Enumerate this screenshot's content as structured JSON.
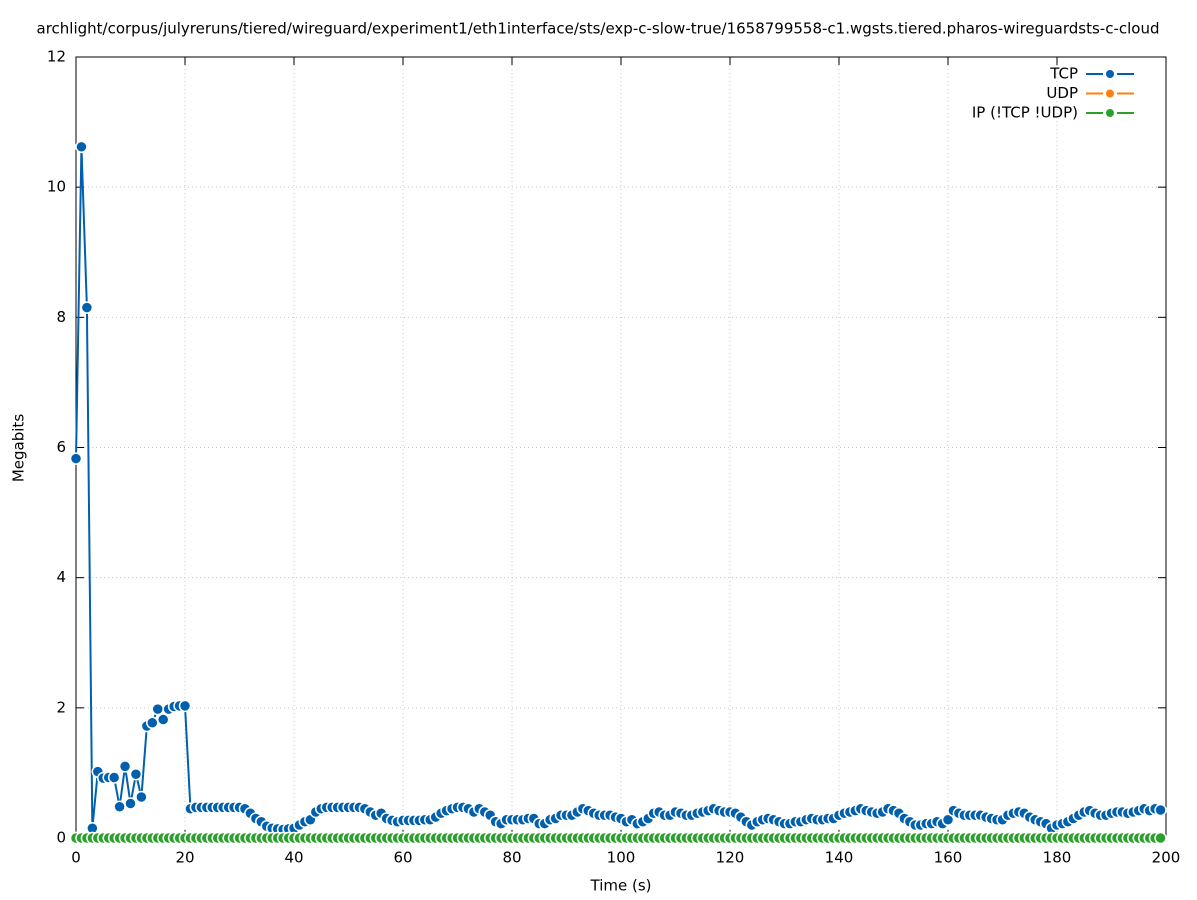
{
  "chart_data": {
    "type": "line",
    "title": "archlight/corpus/julyreruns/tiered/wireguard/experiment1/eth1interface/sts/exp-c-slow-true/1658799558-c1.wgsts.tiered.pharos-wireguardsts-c-cloud",
    "x_label": "Time (s)",
    "y_label": "Megabits",
    "x": [
      0,
      1,
      2,
      3,
      4,
      5,
      6,
      7,
      8,
      9,
      10,
      11,
      12,
      13,
      14,
      15,
      16,
      17,
      18,
      19,
      20,
      21,
      22,
      23,
      24,
      25,
      26,
      27,
      28,
      29,
      30,
      31,
      32,
      33,
      34,
      35,
      36,
      37,
      38,
      39,
      40,
      41,
      42,
      43,
      44,
      45,
      46,
      47,
      48,
      49,
      50,
      51,
      52,
      53,
      54,
      55,
      56,
      57,
      58,
      59,
      60,
      61,
      62,
      63,
      64,
      65,
      66,
      67,
      68,
      69,
      70,
      71,
      72,
      73,
      74,
      75,
      76,
      77,
      78,
      79,
      80,
      81,
      82,
      83,
      84,
      85,
      86,
      87,
      88,
      89,
      90,
      91,
      92,
      93,
      94,
      95,
      96,
      97,
      98,
      99,
      100,
      101,
      102,
      103,
      104,
      105,
      106,
      107,
      108,
      109,
      110,
      111,
      112,
      113,
      114,
      115,
      116,
      117,
      118,
      119,
      120,
      121,
      122,
      123,
      124,
      125,
      126,
      127,
      128,
      129,
      130,
      131,
      132,
      133,
      134,
      135,
      136,
      137,
      138,
      139,
      140,
      141,
      142,
      143,
      144,
      145,
      146,
      147,
      148,
      149,
      150,
      151,
      152,
      153,
      154,
      155,
      156,
      157,
      158,
      159,
      160,
      161,
      162,
      163,
      164,
      165,
      166,
      167,
      168,
      169,
      170,
      171,
      172,
      173,
      174,
      175,
      176,
      177,
      178,
      179,
      180,
      181,
      182,
      183,
      184,
      185,
      186,
      187,
      188,
      189,
      190,
      191,
      192,
      193,
      194,
      195,
      196,
      197,
      198,
      199
    ],
    "series": [
      {
        "name": "TCP",
        "color": "#0060ad",
        "values": [
          5.83,
          10.62,
          8.15,
          0.15,
          1.02,
          0.92,
          0.93,
          0.93,
          0.48,
          1.1,
          0.53,
          0.98,
          0.63,
          1.72,
          1.77,
          1.98,
          1.82,
          1.98,
          2.02,
          2.03,
          2.03,
          0.45,
          0.47,
          0.47,
          0.47,
          0.47,
          0.47,
          0.47,
          0.47,
          0.47,
          0.47,
          0.45,
          0.38,
          0.3,
          0.25,
          0.18,
          0.15,
          0.14,
          0.13,
          0.14,
          0.15,
          0.2,
          0.25,
          0.28,
          0.4,
          0.45,
          0.47,
          0.47,
          0.47,
          0.47,
          0.47,
          0.47,
          0.47,
          0.45,
          0.4,
          0.35,
          0.38,
          0.3,
          0.27,
          0.25,
          0.27,
          0.27,
          0.27,
          0.27,
          0.28,
          0.28,
          0.32,
          0.38,
          0.42,
          0.45,
          0.47,
          0.47,
          0.45,
          0.4,
          0.45,
          0.4,
          0.35,
          0.25,
          0.22,
          0.28,
          0.28,
          0.28,
          0.28,
          0.3,
          0.3,
          0.22,
          0.22,
          0.28,
          0.3,
          0.35,
          0.35,
          0.35,
          0.4,
          0.45,
          0.42,
          0.38,
          0.35,
          0.35,
          0.35,
          0.32,
          0.3,
          0.25,
          0.28,
          0.22,
          0.25,
          0.3,
          0.38,
          0.4,
          0.35,
          0.35,
          0.4,
          0.38,
          0.35,
          0.35,
          0.38,
          0.4,
          0.42,
          0.45,
          0.42,
          0.4,
          0.4,
          0.38,
          0.32,
          0.25,
          0.2,
          0.25,
          0.28,
          0.3,
          0.28,
          0.25,
          0.22,
          0.22,
          0.25,
          0.25,
          0.28,
          0.3,
          0.28,
          0.28,
          0.3,
          0.3,
          0.35,
          0.38,
          0.4,
          0.42,
          0.45,
          0.42,
          0.4,
          0.38,
          0.4,
          0.45,
          0.42,
          0.38,
          0.3,
          0.25,
          0.2,
          0.2,
          0.22,
          0.22,
          0.25,
          0.22,
          0.28,
          0.42,
          0.38,
          0.35,
          0.35,
          0.35,
          0.35,
          0.32,
          0.3,
          0.28,
          0.28,
          0.35,
          0.38,
          0.4,
          0.38,
          0.32,
          0.28,
          0.25,
          0.22,
          0.15,
          0.2,
          0.22,
          0.25,
          0.3,
          0.35,
          0.4,
          0.42,
          0.38,
          0.35,
          0.35,
          0.38,
          0.4,
          0.4,
          0.38,
          0.4,
          0.42,
          0.45,
          0.42,
          0.45,
          0.43
        ]
      },
      {
        "name": "UDP",
        "color": "#ff7f0e",
        "values": [
          0,
          0,
          0,
          0,
          0,
          0,
          0,
          0,
          0,
          0,
          0,
          0,
          0,
          0,
          0,
          0,
          0,
          0,
          0,
          0,
          0,
          0,
          0,
          0,
          0,
          0,
          0,
          0,
          0,
          0,
          0,
          0,
          0,
          0,
          0,
          0,
          0,
          0,
          0,
          0,
          0,
          0,
          0,
          0,
          0,
          0,
          0,
          0,
          0,
          0,
          0,
          0,
          0,
          0,
          0,
          0,
          0,
          0,
          0,
          0,
          0,
          0,
          0,
          0,
          0,
          0,
          0,
          0,
          0,
          0,
          0,
          0,
          0,
          0,
          0,
          0,
          0,
          0,
          0,
          0,
          0,
          0,
          0,
          0,
          0,
          0,
          0,
          0,
          0,
          0,
          0,
          0,
          0,
          0,
          0,
          0,
          0,
          0,
          0,
          0,
          0,
          0,
          0,
          0,
          0,
          0,
          0,
          0,
          0,
          0,
          0,
          0,
          0,
          0,
          0,
          0,
          0,
          0,
          0,
          0,
          0,
          0,
          0,
          0,
          0,
          0,
          0,
          0,
          0,
          0,
          0,
          0,
          0,
          0,
          0,
          0,
          0,
          0,
          0,
          0,
          0,
          0,
          0,
          0,
          0,
          0,
          0,
          0,
          0,
          0,
          0,
          0,
          0,
          0,
          0,
          0,
          0,
          0,
          0,
          0,
          0,
          0,
          0,
          0,
          0,
          0,
          0,
          0,
          0,
          0,
          0,
          0,
          0,
          0,
          0,
          0,
          0,
          0,
          0,
          0,
          0,
          0,
          0,
          0,
          0,
          0,
          0,
          0,
          0,
          0,
          0,
          0,
          0,
          0,
          0,
          0,
          0,
          0,
          0,
          0
        ]
      },
      {
        "name": "IP (!TCP  !UDP)",
        "color": "#2ca02c",
        "values": [
          0,
          0,
          0,
          0,
          0,
          0,
          0,
          0,
          0,
          0,
          0,
          0,
          0,
          0,
          0,
          0,
          0,
          0,
          0,
          0,
          0,
          0,
          0,
          0,
          0,
          0,
          0,
          0,
          0,
          0,
          0,
          0,
          0,
          0,
          0,
          0,
          0,
          0,
          0,
          0,
          0,
          0,
          0,
          0,
          0,
          0,
          0,
          0,
          0,
          0,
          0,
          0,
          0,
          0,
          0,
          0,
          0,
          0,
          0,
          0,
          0,
          0,
          0,
          0,
          0,
          0,
          0,
          0,
          0,
          0,
          0,
          0,
          0,
          0,
          0,
          0,
          0,
          0,
          0,
          0,
          0,
          0,
          0,
          0,
          0,
          0,
          0,
          0,
          0,
          0,
          0,
          0,
          0,
          0,
          0,
          0,
          0,
          0,
          0,
          0,
          0,
          0,
          0,
          0,
          0,
          0,
          0,
          0,
          0,
          0,
          0,
          0,
          0,
          0,
          0,
          0,
          0,
          0,
          0,
          0,
          0,
          0,
          0,
          0,
          0,
          0,
          0,
          0,
          0,
          0,
          0,
          0,
          0,
          0,
          0,
          0,
          0,
          0,
          0,
          0,
          0,
          0,
          0,
          0,
          0,
          0,
          0,
          0,
          0,
          0,
          0,
          0,
          0,
          0,
          0,
          0,
          0,
          0,
          0,
          0,
          0,
          0,
          0,
          0,
          0,
          0,
          0,
          0,
          0,
          0,
          0,
          0,
          0,
          0,
          0,
          0,
          0,
          0,
          0,
          0,
          0,
          0,
          0,
          0,
          0,
          0,
          0,
          0,
          0,
          0,
          0,
          0,
          0,
          0,
          0,
          0,
          0,
          0,
          0,
          0
        ]
      }
    ],
    "xlim": [
      0,
      200
    ],
    "xticks": [
      0,
      20,
      40,
      60,
      80,
      100,
      120,
      140,
      160,
      180,
      200
    ],
    "ylim": [
      0,
      12
    ],
    "yticks": [
      0,
      2,
      4,
      6,
      8,
      10,
      12
    ],
    "grid": true,
    "legend": "top-right"
  }
}
